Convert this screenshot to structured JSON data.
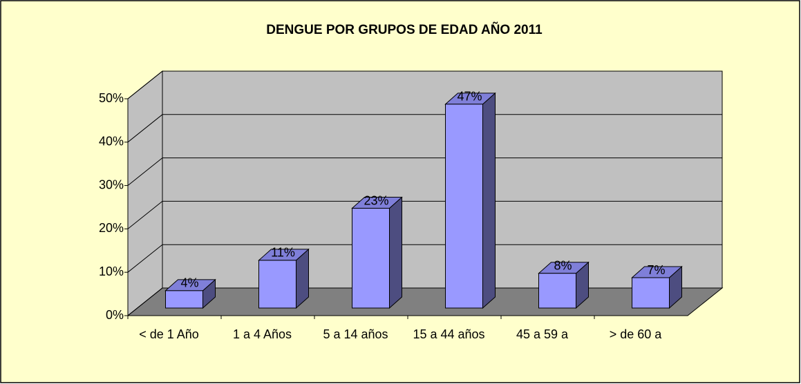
{
  "chart_data": {
    "type": "bar3d",
    "title": "DENGUE POR GRUPOS DE EDAD AÑO 2011",
    "categories": [
      "< de 1 Año",
      "1 a 4 Años",
      "5 a 14 años",
      "15 a 44 años",
      "45 a 59 a",
      "> de 60 a"
    ],
    "values": [
      4,
      11,
      23,
      47,
      8,
      7
    ],
    "value_labels": [
      "4%",
      "11%",
      "23%",
      "47%",
      "8%",
      "7%"
    ],
    "color": "#9999ff",
    "ylim": [
      0,
      50
    ],
    "yticks": [
      {
        "value": 0,
        "label": "0%"
      },
      {
        "value": 10,
        "label": "10%"
      },
      {
        "value": 20,
        "label": "20%"
      },
      {
        "value": 30,
        "label": "30%"
      },
      {
        "value": 40,
        "label": "40%"
      },
      {
        "value": 50,
        "label": "50%"
      }
    ],
    "grid": true
  }
}
